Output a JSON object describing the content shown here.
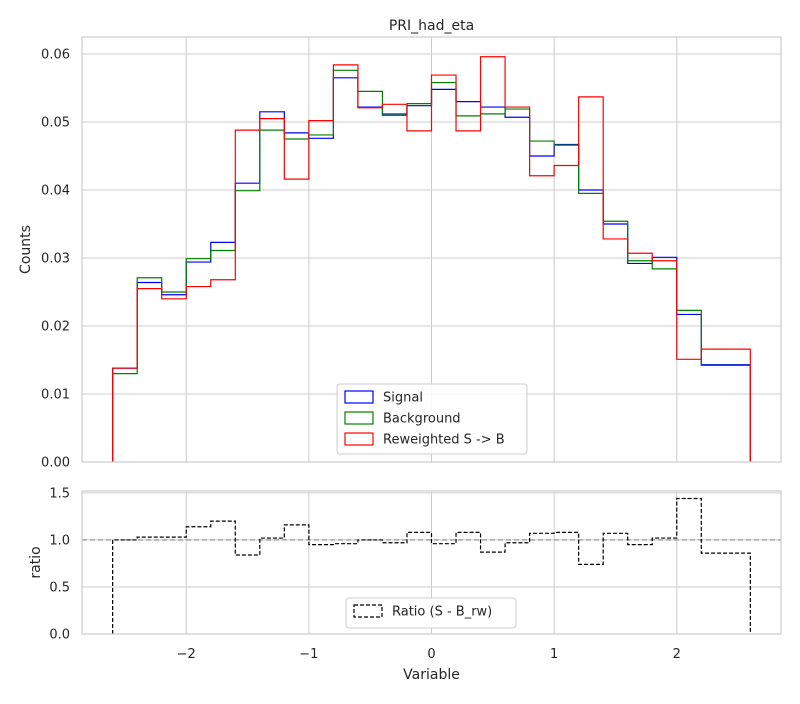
{
  "chart_data": [
    {
      "type": "step",
      "title": "PRI_had_eta",
      "xlabel": "",
      "ylabel": "Counts",
      "xlim": [
        -2.85,
        2.85
      ],
      "ylim": [
        0,
        0.0625
      ],
      "grid": true,
      "legend_position": "bottom-center",
      "bin_edges": [
        -2.6,
        -2.4,
        -2.2,
        -2.0,
        -1.8,
        -1.6,
        -1.4,
        -1.2,
        -1.0,
        -0.8,
        -0.6,
        -0.4,
        -0.2,
        0.0,
        0.2,
        0.4,
        0.6,
        0.8,
        1.0,
        1.2,
        1.4,
        1.6,
        1.8,
        2.0,
        2.2,
        2.4,
        2.6
      ],
      "xticks": [
        -2,
        -1,
        0,
        1,
        2
      ],
      "xtick_labels": [
        "−2",
        "−1",
        "0",
        "1",
        "2"
      ],
      "yticks": [
        0,
        0.01,
        0.02,
        0.03,
        0.04,
        0.05,
        0.06
      ],
      "ytick_labels": [
        "0.00",
        "0.01",
        "0.02",
        "0.03",
        "0.04",
        "0.05",
        "0.06"
      ],
      "series": [
        {
          "name": "Signal",
          "color": "#0000ff",
          "values": [
            0.0138,
            0.0264,
            0.0246,
            0.0294,
            0.0323,
            0.041,
            0.0515,
            0.0484,
            0.0476,
            0.0565,
            0.0522,
            0.051,
            0.0524,
            0.0548,
            0.053,
            0.0522,
            0.0507,
            0.045,
            0.0467,
            0.04,
            0.035,
            0.0292,
            0.0301,
            0.0217,
            0.0143,
            0.0143
          ]
        },
        {
          "name": "Background",
          "color": "#008000",
          "values": [
            0.013,
            0.0271,
            0.025,
            0.0299,
            0.0311,
            0.0399,
            0.0488,
            0.0475,
            0.0481,
            0.0576,
            0.0545,
            0.0512,
            0.0527,
            0.0558,
            0.0509,
            0.0512,
            0.0519,
            0.0472,
            0.0466,
            0.0395,
            0.0354,
            0.0296,
            0.0284,
            0.0223,
            0.0142,
            0.0142
          ]
        },
        {
          "name": "Reweighted S -> B",
          "color": "#ff0000",
          "values": [
            0.0138,
            0.0255,
            0.024,
            0.0258,
            0.0268,
            0.0488,
            0.0505,
            0.0416,
            0.0502,
            0.0584,
            0.0521,
            0.0526,
            0.0487,
            0.0569,
            0.0487,
            0.0596,
            0.0522,
            0.0421,
            0.0436,
            0.0537,
            0.0328,
            0.0307,
            0.0296,
            0.0151,
            0.0166,
            0.0166
          ]
        }
      ]
    },
    {
      "type": "step",
      "title": "",
      "xlabel": "Variable",
      "ylabel": "ratio",
      "xlim": [
        -2.85,
        2.85
      ],
      "ylim": [
        0,
        1.52
      ],
      "grid": true,
      "legend_position": "bottom-center",
      "reference_line": 1.0,
      "bin_edges": [
        -2.6,
        -2.4,
        -2.2,
        -2.0,
        -1.8,
        -1.6,
        -1.4,
        -1.2,
        -1.0,
        -0.8,
        -0.6,
        -0.4,
        -0.2,
        0.0,
        0.2,
        0.4,
        0.6,
        0.8,
        1.0,
        1.2,
        1.4,
        1.6,
        1.8,
        2.0,
        2.2,
        2.4,
        2.6
      ],
      "xticks": [
        -2,
        -1,
        0,
        1,
        2
      ],
      "xtick_labels": [
        "−2",
        "−1",
        "0",
        "1",
        "2"
      ],
      "yticks": [
        0,
        0.5,
        1.0,
        1.5
      ],
      "ytick_labels": [
        "0.0",
        "0.5",
        "1.0",
        "1.5"
      ],
      "series": [
        {
          "name": "Ratio (S - B_rw)",
          "color": "#000000",
          "values": [
            1.0,
            1.03,
            1.03,
            1.14,
            1.2,
            0.84,
            1.02,
            1.16,
            0.95,
            0.96,
            1.0,
            0.97,
            1.08,
            0.96,
            1.08,
            0.87,
            0.97,
            1.07,
            1.08,
            0.74,
            1.07,
            0.95,
            1.02,
            1.44,
            0.86,
            0.86
          ]
        }
      ]
    }
  ]
}
